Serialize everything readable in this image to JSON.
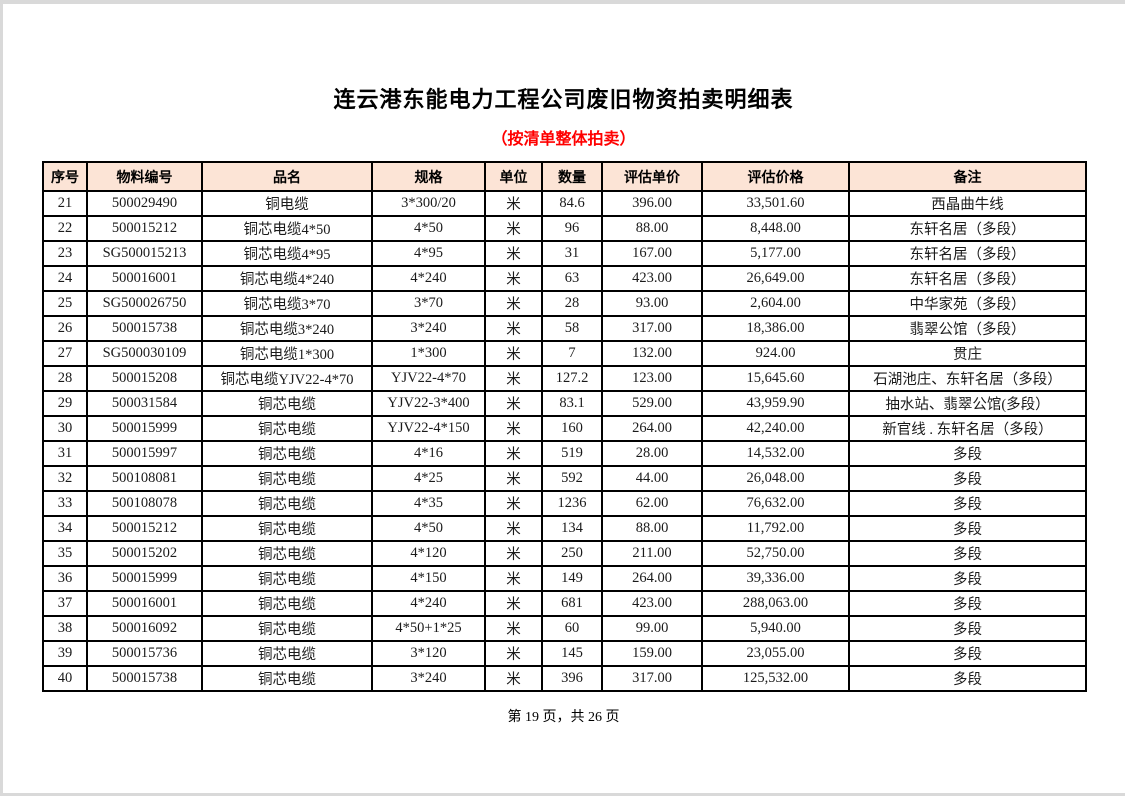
{
  "page": {
    "title": "连云港东能电力工程公司废旧物资拍卖明细表",
    "subtitle": "（按清单整体拍卖）",
    "footer": "第 19 页，共 26 页"
  },
  "colors": {
    "header_bg": "#FCE4D6",
    "subtitle_red": "#FF0000",
    "border": "#000000"
  },
  "table": {
    "headers": [
      "序号",
      "物料编号",
      "品名",
      "规格",
      "单位",
      "数量",
      "评估单价",
      "评估价格",
      "备注"
    ],
    "rows": [
      [
        "21",
        "500029490",
        "铜电缆",
        "3*300/20",
        "米",
        "84.6",
        "396.00",
        "33,501.60",
        "西晶曲牛线"
      ],
      [
        "22",
        "500015212",
        "铜芯电缆4*50",
        "4*50",
        "米",
        "96",
        "88.00",
        "8,448.00",
        "东轩名居（多段）"
      ],
      [
        "23",
        "SG500015213",
        "铜芯电缆4*95",
        "4*95",
        "米",
        "31",
        "167.00",
        "5,177.00",
        "东轩名居（多段）"
      ],
      [
        "24",
        "500016001",
        "铜芯电缆4*240",
        "4*240",
        "米",
        "63",
        "423.00",
        "26,649.00",
        "东轩名居（多段）"
      ],
      [
        "25",
        "SG500026750",
        "铜芯电缆3*70",
        "3*70",
        "米",
        "28",
        "93.00",
        "2,604.00",
        "中华家苑（多段）"
      ],
      [
        "26",
        "500015738",
        "铜芯电缆3*240",
        "3*240",
        "米",
        "58",
        "317.00",
        "18,386.00",
        "翡翠公馆（多段）"
      ],
      [
        "27",
        "SG500030109",
        "铜芯电缆1*300",
        "1*300",
        "米",
        "7",
        "132.00",
        "924.00",
        "贯庄"
      ],
      [
        "28",
        "500015208",
        "铜芯电缆YJV22-4*70",
        "YJV22-4*70",
        "米",
        "127.2",
        "123.00",
        "15,645.60",
        "石湖池庄、东轩名居（多段）"
      ],
      [
        "29",
        "500031584",
        "铜芯电缆",
        "YJV22-3*400",
        "米",
        "83.1",
        "529.00",
        "43,959.90",
        "抽水站、翡翠公馆(多段）"
      ],
      [
        "30",
        "500015999",
        "铜芯电缆",
        "YJV22-4*150",
        "米",
        "160",
        "264.00",
        "42,240.00",
        "新官线 . 东轩名居（多段）"
      ],
      [
        "31",
        "500015997",
        "铜芯电缆",
        "4*16",
        "米",
        "519",
        "28.00",
        "14,532.00",
        "多段"
      ],
      [
        "32",
        "500108081",
        "铜芯电缆",
        "4*25",
        "米",
        "592",
        "44.00",
        "26,048.00",
        "多段"
      ],
      [
        "33",
        "500108078",
        "铜芯电缆",
        "4*35",
        "米",
        "1236",
        "62.00",
        "76,632.00",
        "多段"
      ],
      [
        "34",
        "500015212",
        "铜芯电缆",
        "4*50",
        "米",
        "134",
        "88.00",
        "11,792.00",
        "多段"
      ],
      [
        "35",
        "500015202",
        "铜芯电缆",
        "4*120",
        "米",
        "250",
        "211.00",
        "52,750.00",
        "多段"
      ],
      [
        "36",
        "500015999",
        "铜芯电缆",
        "4*150",
        "米",
        "149",
        "264.00",
        "39,336.00",
        "多段"
      ],
      [
        "37",
        "500016001",
        "铜芯电缆",
        "4*240",
        "米",
        "681",
        "423.00",
        "288,063.00",
        "多段"
      ],
      [
        "38",
        "500016092",
        "铜芯电缆",
        "4*50+1*25",
        "米",
        "60",
        "99.00",
        "5,940.00",
        "多段"
      ],
      [
        "39",
        "500015736",
        "铜芯电缆",
        "3*120",
        "米",
        "145",
        "159.00",
        "23,055.00",
        "多段"
      ],
      [
        "40",
        "500015738",
        "铜芯电缆",
        "3*240",
        "米",
        "396",
        "317.00",
        "125,532.00",
        "多段"
      ]
    ]
  }
}
